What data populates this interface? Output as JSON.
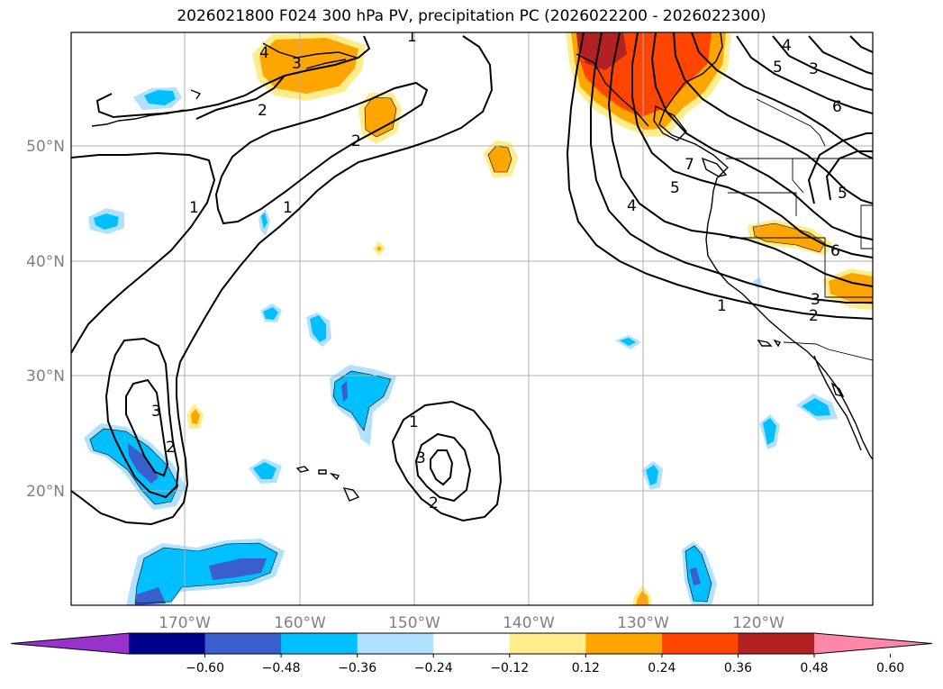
{
  "title": "2026021800 F024 300 hPa PV, precipitation PC (2026022200 - 2026022300)",
  "lat_labels": [
    "50°N",
    "40°N",
    "30°N",
    "20°N"
  ],
  "lon_labels": [
    "170°W",
    "160°W",
    "150°W",
    "140°W",
    "130°W",
    "120°W"
  ],
  "pv_labels": [
    "1",
    "1",
    "1",
    "1",
    "2",
    "2",
    "2",
    "2",
    "2",
    "3",
    "3",
    "3",
    "3",
    "3",
    "4",
    "4",
    "4",
    "5",
    "5",
    "5",
    "6",
    "6",
    "7",
    "1"
  ],
  "colorbar": {
    "ticks": [
      "−0.60",
      "−0.48",
      "−0.36",
      "−0.24",
      "−0.12",
      "0.12",
      "0.24",
      "0.36",
      "0.48",
      "0.60"
    ],
    "colors": [
      "#9932cc",
      "#00008b",
      "#3a5fcd",
      "#00bfff",
      "#b0e2ff",
      "#ffffff",
      "#ffec8b",
      "#ffa500",
      "#ff4500",
      "#b22222",
      "#ff88aa"
    ]
  }
}
